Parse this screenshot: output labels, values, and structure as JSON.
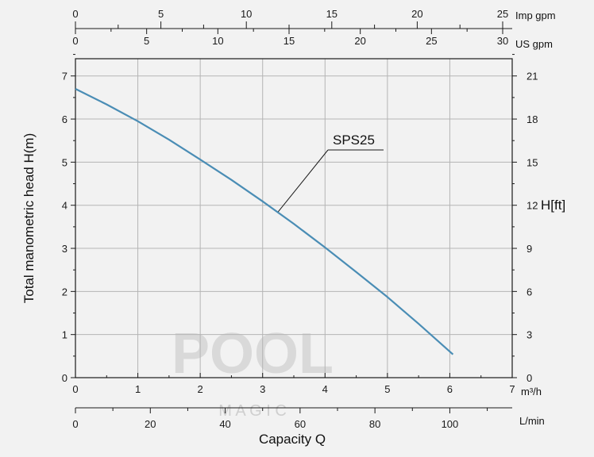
{
  "chart_data": {
    "type": "line",
    "series": [
      {
        "name": "SPS25",
        "x": [
          0,
          0.5,
          1,
          1.5,
          2,
          2.5,
          3,
          3.5,
          4,
          4.5,
          5,
          5.5,
          6.05
        ],
        "y": [
          6.7,
          6.34,
          5.95,
          5.52,
          5.06,
          4.59,
          4.09,
          3.57,
          3.02,
          2.45,
          1.87,
          1.25,
          0.54
        ]
      }
    ],
    "xlabel": "Capacity Q",
    "ylabel": "Total manometric head H(m)",
    "y2label": "H[ft]",
    "xlim": [
      0,
      7
    ],
    "ylim": [
      0,
      7.4
    ],
    "x_unit": "m³/h",
    "x_ticks": [
      "0",
      "1",
      "2",
      "3",
      "4",
      "5",
      "6",
      "7"
    ],
    "y_ticks": [
      "0",
      "1",
      "2",
      "3",
      "4",
      "5",
      "6",
      "7"
    ],
    "y2_ticks": [
      "0",
      "3",
      "6",
      "9",
      "12",
      "15",
      "18",
      "21"
    ],
    "lmin_axis": {
      "unit": "L/min",
      "ticks": [
        "0",
        "20",
        "40",
        "60",
        "80",
        "100"
      ]
    },
    "usgpm_axis": {
      "unit": "US gpm",
      "ticks": [
        "0",
        "5",
        "10",
        "15",
        "20",
        "25",
        "30"
      ]
    },
    "impgpm_axis": {
      "unit": "Imp gpm",
      "ticks": [
        "0",
        "5",
        "10",
        "15",
        "20",
        "25"
      ]
    },
    "annotation": {
      "text": "SPS25",
      "target_x": 3.25,
      "target_y": 3.85
    },
    "grid": true,
    "line_color": "#4a8db5"
  },
  "watermark": {
    "word": "POOL",
    "sub": "M A G I C"
  }
}
